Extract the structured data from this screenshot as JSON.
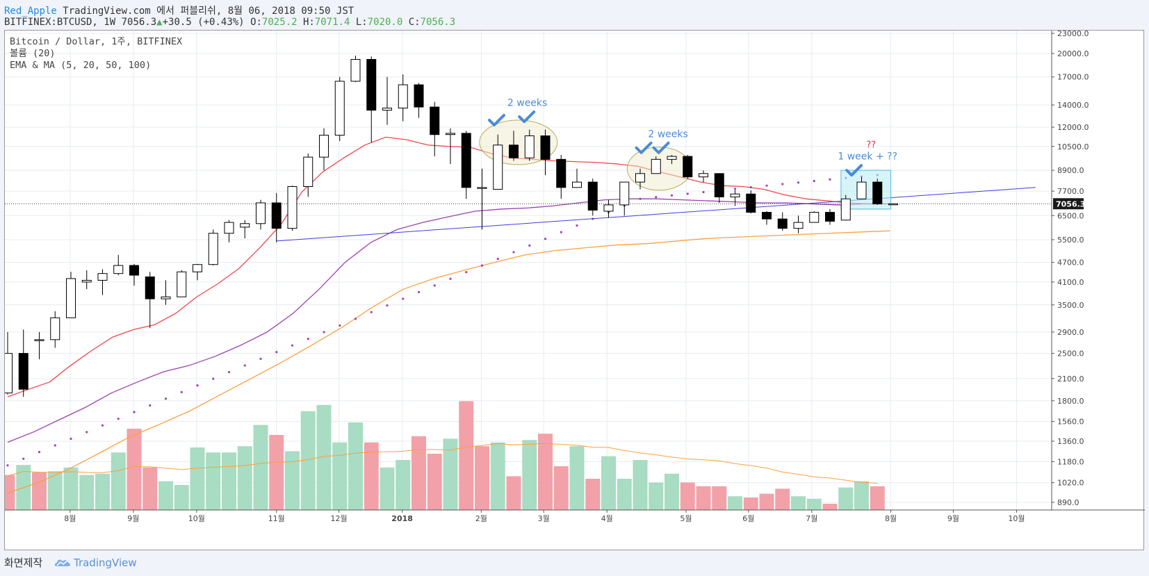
{
  "header": {
    "user": "Red_Apple",
    "published": "TradingView.com 에서 퍼블리쉬, 8월 06, 2018 09:50 JST",
    "symbol": "BITFINEX:BTCUSD, 1W",
    "last": "7056.3",
    "change_arrow": "▲",
    "change": "+30.5 (+0.43%)",
    "o_label": "O:",
    "o": "7025.2",
    "h_label": "H:",
    "h": "7071.4",
    "l_label": "L:",
    "l": "7020.0",
    "c_label": "C:",
    "c": "7056.3"
  },
  "legend": {
    "line1": "Bitcoin / Dollar, 1주, BITFINEX",
    "line2": "볼륨 (20)",
    "line3": "EMA & MA (5, 20, 50, 100)"
  },
  "price_label": "7056.3",
  "annotations": {
    "two_weeks_1": "2 weeks",
    "two_weeks_2": "2 weeks",
    "one_week": "1 week + ??",
    "question": "??"
  },
  "footer": {
    "made_with": "화면제작",
    "brand": "TradingView"
  },
  "colors": {
    "up_candle": "#ffffff",
    "down_candle": "#000000",
    "vol_up": "#a8dcc3",
    "vol_down": "#f2a1a8",
    "ema_red": "#f0474d",
    "ema_purple": "#9c3fb0",
    "ma_orange": "#ff9e3d",
    "trend_blue": "#3d3de0",
    "annotation_blue": "#4a8bd6",
    "annotation_red": "#e53935"
  },
  "chart_data": {
    "type": "candlestick",
    "timeframe": "1W",
    "y_scale": "log",
    "y_ticks": [
      890,
      1020,
      1180,
      1360,
      1560,
      1800,
      2100,
      2500,
      2900,
      3500,
      4100,
      4700,
      5500,
      6500,
      7700,
      8900,
      10500,
      12000,
      14000,
      17000,
      20000,
      23000
    ],
    "x_ticks": [
      {
        "label": "8월",
        "week": 3.95
      },
      {
        "label": "9월",
        "week": 7.95
      },
      {
        "label": "10월",
        "week": 11.95
      },
      {
        "label": "11월",
        "week": 17
      },
      {
        "label": "12월",
        "week": 20.95
      },
      {
        "label": "2018",
        "week": 24.95
      },
      {
        "label": "2월",
        "week": 29.95
      },
      {
        "label": "3월",
        "week": 33.9
      },
      {
        "label": "4월",
        "week": 37.9
      },
      {
        "label": "5월",
        "week": 42.9
      },
      {
        "label": "6월",
        "week": 46.85
      },
      {
        "label": "7월",
        "week": 50.85
      },
      {
        "label": "8월",
        "week": 55.85
      },
      {
        "label": "9월",
        "week": 59.8
      },
      {
        "label": "10월",
        "week": 63.8
      }
    ],
    "candles": [
      [
        1900,
        2900,
        1880,
        2500
      ],
      [
        2500,
        2950,
        1850,
        1950
      ],
      [
        2750,
        2900,
        2400,
        2750
      ],
      [
        2750,
        3350,
        2600,
        3200
      ],
      [
        3200,
        4400,
        3200,
        4200
      ],
      [
        4100,
        4450,
        3900,
        4150
      ],
      [
        4150,
        4480,
        3750,
        4350
      ],
      [
        4350,
        4950,
        4300,
        4600
      ],
      [
        4600,
        4650,
        4000,
        4300
      ],
      [
        4250,
        4400,
        2980,
        3650
      ],
      [
        3650,
        4150,
        3500,
        3700
      ],
      [
        3700,
        4450,
        3700,
        4400
      ],
      [
        4400,
        4650,
        4150,
        4630
      ],
      [
        4630,
        5900,
        4600,
        5750
      ],
      [
        5750,
        6300,
        5400,
        6200
      ],
      [
        6000,
        6300,
        5550,
        6150
      ],
      [
        6150,
        7250,
        5900,
        7100
      ],
      [
        7100,
        7600,
        5400,
        5950
      ],
      [
        5950,
        8000,
        5850,
        7950
      ],
      [
        7950,
        10000,
        7400,
        9750
      ],
      [
        9750,
        11900,
        8900,
        11350
      ],
      [
        11350,
        17000,
        10900,
        16500
      ],
      [
        16500,
        19700,
        16400,
        19200
      ],
      [
        19200,
        19600,
        10800,
        13500
      ],
      [
        13500,
        17000,
        12200,
        13700
      ],
      [
        13700,
        17300,
        12500,
        16100
      ],
      [
        16100,
        16300,
        12800,
        13800
      ],
      [
        13800,
        14300,
        9800,
        11400
      ],
      [
        11400,
        11900,
        9300,
        11500
      ],
      [
        11500,
        11700,
        7300,
        7900
      ],
      [
        7900,
        9000,
        5900,
        7900
      ],
      [
        7800,
        11400,
        7800,
        10600
      ],
      [
        10600,
        11700,
        9500,
        9700
      ],
      [
        9700,
        11800,
        9500,
        11300
      ],
      [
        11300,
        11800,
        8600,
        9600
      ],
      [
        9600,
        9900,
        7300,
        7900
      ],
      [
        7900,
        9000,
        7900,
        8200
      ],
      [
        8200,
        8400,
        6500,
        6750
      ],
      [
        6700,
        7250,
        6400,
        7000
      ],
      [
        7000,
        8200,
        6500,
        8200
      ],
      [
        8200,
        9000,
        7800,
        8700
      ],
      [
        8700,
        9800,
        8700,
        9600
      ],
      [
        9600,
        9900,
        9300,
        9800
      ],
      [
        9800,
        9900,
        8400,
        8500
      ],
      [
        8500,
        8900,
        8200,
        8700
      ],
      [
        8700,
        8700,
        7100,
        7400
      ],
      [
        7400,
        7750,
        6950,
        7550
      ],
      [
        7550,
        7750,
        6600,
        6650
      ],
      [
        6650,
        6700,
        6100,
        6350
      ],
      [
        6350,
        6650,
        5850,
        5950
      ],
      [
        5950,
        6500,
        5750,
        6200
      ],
      [
        6200,
        6700,
        6200,
        6650
      ],
      [
        6650,
        6800,
        6100,
        6250
      ],
      [
        6300,
        7500,
        6300,
        7300
      ],
      [
        7300,
        8500,
        7300,
        8200
      ],
      [
        8200,
        8400,
        7000,
        7050
      ],
      [
        7025,
        7071,
        7020,
        7056
      ]
    ],
    "volume_ticks_note": "volume bars relative heights (0-1)",
    "volume": [
      0.28,
      0.36,
      0.3,
      0.31,
      0.34,
      0.28,
      0.29,
      0.46,
      0.65,
      0.34,
      0.23,
      0.2,
      0.5,
      0.46,
      0.46,
      0.51,
      0.68,
      0.6,
      0.47,
      0.79,
      0.84,
      0.54,
      0.7,
      0.54,
      0.34,
      0.4,
      0.59,
      0.45,
      0.57,
      0.87,
      0.51,
      0.54,
      0.27,
      0.56,
      0.61,
      0.35,
      0.51,
      0.25,
      0.43,
      0.25,
      0.4,
      0.22,
      0.29,
      0.22,
      0.19,
      0.19,
      0.11,
      0.1,
      0.13,
      0.17,
      0.11,
      0.09,
      0.05,
      0.18,
      0.23,
      0.19,
      0.0
    ],
    "volume_up": [
      false,
      true,
      false,
      true,
      true,
      true,
      true,
      true,
      false,
      false,
      true,
      true,
      true,
      true,
      true,
      true,
      true,
      false,
      true,
      true,
      true,
      true,
      true,
      false,
      true,
      true,
      false,
      false,
      true,
      false,
      false,
      true,
      false,
      true,
      false,
      false,
      true,
      false,
      true,
      true,
      true,
      true,
      true,
      false,
      false,
      false,
      true,
      false,
      false,
      false,
      true,
      true,
      false,
      true,
      true,
      false,
      true
    ],
    "ema5_red": [
      1850,
      1950,
      2050,
      2300,
      2550,
      2800,
      2950,
      3050,
      3300,
      3700,
      4050,
      4500,
      5200,
      6100,
      7650,
      8800,
      9700,
      10600,
      11200,
      11000,
      10600,
      10500,
      10450,
      10000,
      9700,
      9600,
      9500,
      9450,
      9400,
      9300,
      9150,
      8800,
      8500,
      8200,
      8000,
      7950,
      7800,
      7500,
      7300,
      7200,
      7100,
      7050,
      7050
    ],
    "ema20_purple": [
      1350,
      1450,
      1580,
      1720,
      1900,
      2050,
      2200,
      2300,
      2450,
      2650,
      2900,
      3300,
      3900,
      4700,
      5400,
      5900,
      6200,
      6450,
      6700,
      6800,
      6850,
      6950,
      7100,
      7250,
      7300,
      7300,
      7250,
      7200,
      7150,
      7100,
      7100,
      7050,
      7000,
      7050,
      7050
    ],
    "ma50_orange": [
      950,
      1020,
      1120,
      1250,
      1400,
      1530,
      1680,
      1880,
      2100,
      2350,
      2650,
      3000,
      3450,
      3900,
      4200,
      4450,
      4700,
      4950,
      5100,
      5200,
      5300,
      5350,
      5450,
      5550,
      5600,
      5650,
      5700,
      5750,
      5800,
      5850
    ],
    "trend_line": {
      "from_week": 17,
      "from_price": 5450,
      "to_week": 65,
      "to_price": 7900
    }
  }
}
